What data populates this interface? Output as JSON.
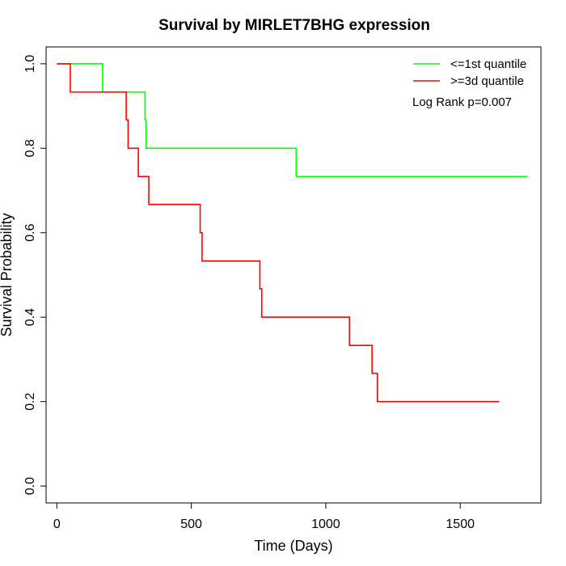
{
  "chart_data": {
    "type": "line",
    "title": "Survival by MIRLET7BHG expression",
    "xlabel": "Time (Days)",
    "ylabel": "Survival Probability",
    "xlim": [
      -40,
      1800
    ],
    "ylim": [
      -0.04,
      1.04
    ],
    "xticks": [
      0,
      500,
      1000,
      1500
    ],
    "yticks": [
      0.0,
      0.2,
      0.4,
      0.6,
      0.8,
      1.0
    ],
    "xtick_labels": [
      "0",
      "500",
      "1000",
      "1500"
    ],
    "ytick_labels": [
      "0.0",
      "0.2",
      "0.4",
      "0.6",
      "0.8",
      "1.0"
    ],
    "grid": false,
    "legend_position": "top-right",
    "annotation": "Log Rank p=0.007",
    "series": [
      {
        "name": "<=1st quantile",
        "color": "#00ff00",
        "step_x": [
          0,
          170,
          170,
          328,
          328,
          332,
          332,
          890,
          890,
          1750
        ],
        "step_y": [
          1.0,
          1.0,
          0.933,
          0.933,
          0.867,
          0.867,
          0.8,
          0.8,
          0.733,
          0.733
        ]
      },
      {
        "name": ">=3d quantile",
        "color": "#ff0000",
        "step_x": [
          0,
          50,
          50,
          258,
          258,
          265,
          265,
          303,
          303,
          342,
          342,
          533,
          533,
          540,
          540,
          755,
          755,
          762,
          762,
          1088,
          1088,
          1172,
          1172,
          1192,
          1192,
          1645
        ],
        "step_y": [
          1.0,
          1.0,
          0.933,
          0.933,
          0.867,
          0.867,
          0.8,
          0.8,
          0.733,
          0.733,
          0.667,
          0.667,
          0.6,
          0.6,
          0.533,
          0.533,
          0.467,
          0.467,
          0.4,
          0.4,
          0.333,
          0.333,
          0.267,
          0.267,
          0.2,
          0.2
        ]
      }
    ]
  }
}
